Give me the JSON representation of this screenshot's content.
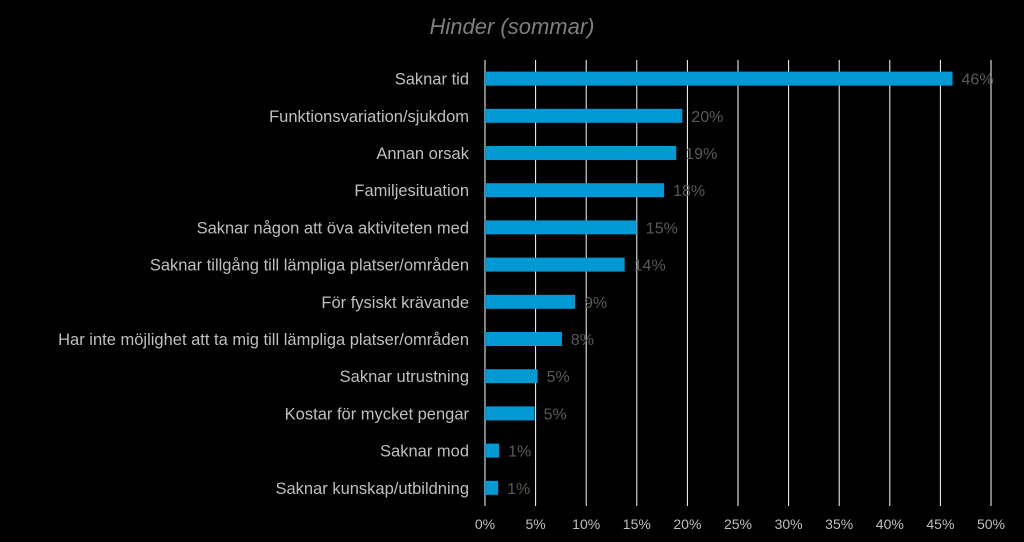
{
  "chart_data": {
    "type": "bar",
    "orientation": "horizontal",
    "title": "Hinder (sommar)",
    "categories": [
      "Saknar tid",
      "Funktionsvariation/sjukdom",
      "Annan orsak",
      "Familjesituation",
      "Saknar någon att öva aktiviteten med",
      "Saknar tillgång till lämpliga platser/områden",
      "För fysiskt krävande",
      "Har inte möjlighet att ta mig till lämpliga platser/områden",
      "Saknar utrustning",
      "Kostar för mycket pengar",
      "Saknar mod",
      "Saknar kunskap/utbildning"
    ],
    "values": [
      46,
      20,
      19,
      18,
      15,
      14,
      9,
      8,
      5,
      5,
      1,
      1
    ],
    "value_labels": [
      "46%",
      "20%",
      "19%",
      "18%",
      "15%",
      "14%",
      "9%",
      "8%",
      "5%",
      "5%",
      "1%",
      "1%"
    ],
    "actual_values": [
      46.2,
      19.5,
      18.9,
      17.7,
      15.0,
      13.8,
      8.9,
      7.6,
      5.2,
      4.9,
      1.4,
      1.3
    ],
    "xlim": [
      0,
      50
    ],
    "x_ticks": [
      "0%",
      "5%",
      "10%",
      "15%",
      "20%",
      "25%",
      "30%",
      "35%",
      "40%",
      "45%",
      "50%"
    ],
    "grid": "vertical",
    "legend": "none",
    "colors": {
      "background": "#000000",
      "bar": "#0099d4",
      "gridline": "#ffffff",
      "title": "#7f7f7f",
      "category_label": "#bfbfbf",
      "tick_label": "#bfbfbf",
      "data_label": "#595959"
    }
  }
}
